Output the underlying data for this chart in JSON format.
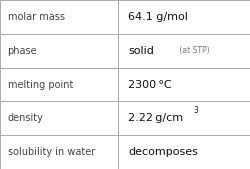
{
  "rows": [
    {
      "label": "molar mass",
      "value": "64.1 g/mol",
      "value_suffix": null,
      "superscript": null
    },
    {
      "label": "phase",
      "value": "solid",
      "value_suffix": " (at STP)",
      "superscript": null
    },
    {
      "label": "melting point",
      "value": "2300 °C",
      "value_suffix": null,
      "superscript": null
    },
    {
      "label": "density",
      "value": "2.22 g/cm",
      "value_suffix": null,
      "superscript": "3"
    },
    {
      "label": "solubility in water",
      "value": "decomposes",
      "value_suffix": null,
      "superscript": null
    }
  ],
  "col_split": 0.47,
  "bg_color": "#ffffff",
  "grid_color": "#aaaaaa",
  "label_color": "#444444",
  "value_color": "#111111",
  "suffix_color": "#777777",
  "label_fontsize": 7.0,
  "value_fontsize": 8.0,
  "suffix_fontsize": 5.5,
  "super_fontsize": 5.5
}
